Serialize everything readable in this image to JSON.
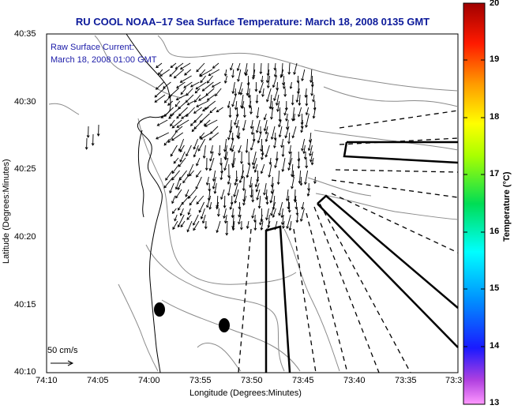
{
  "title": "RU COOL  NOAA–17  Sea Surface Temperature:  March 18, 2008 0135 GMT",
  "legend": {
    "line1": "Raw Surface Current:",
    "line2": "March 18, 2008 01:00 GMT",
    "scale_label": "50 cm/s"
  },
  "axes": {
    "xlabel": "Longitude (Degrees:Minutes)",
    "ylabel": "Latitude (Degrees:Minutes)",
    "xticks": [
      "74:10",
      "74:05",
      "74:00",
      "73:55",
      "73:50",
      "73:45",
      "73:40",
      "73:35",
      "73:3"
    ],
    "yticks": [
      "40:35",
      "40:30",
      "40:25",
      "40:20",
      "40:15",
      "40:10"
    ]
  },
  "colorbar": {
    "label": "Temperature (°C)",
    "ticks": [
      "20",
      "19",
      "18",
      "17",
      "16",
      "15",
      "14",
      "13"
    ],
    "min": 13,
    "max": 20
  },
  "colors": {
    "title": "#0c1a9a",
    "legend": "#1a1aa8",
    "contour": "#888888",
    "vector": "#000000"
  }
}
